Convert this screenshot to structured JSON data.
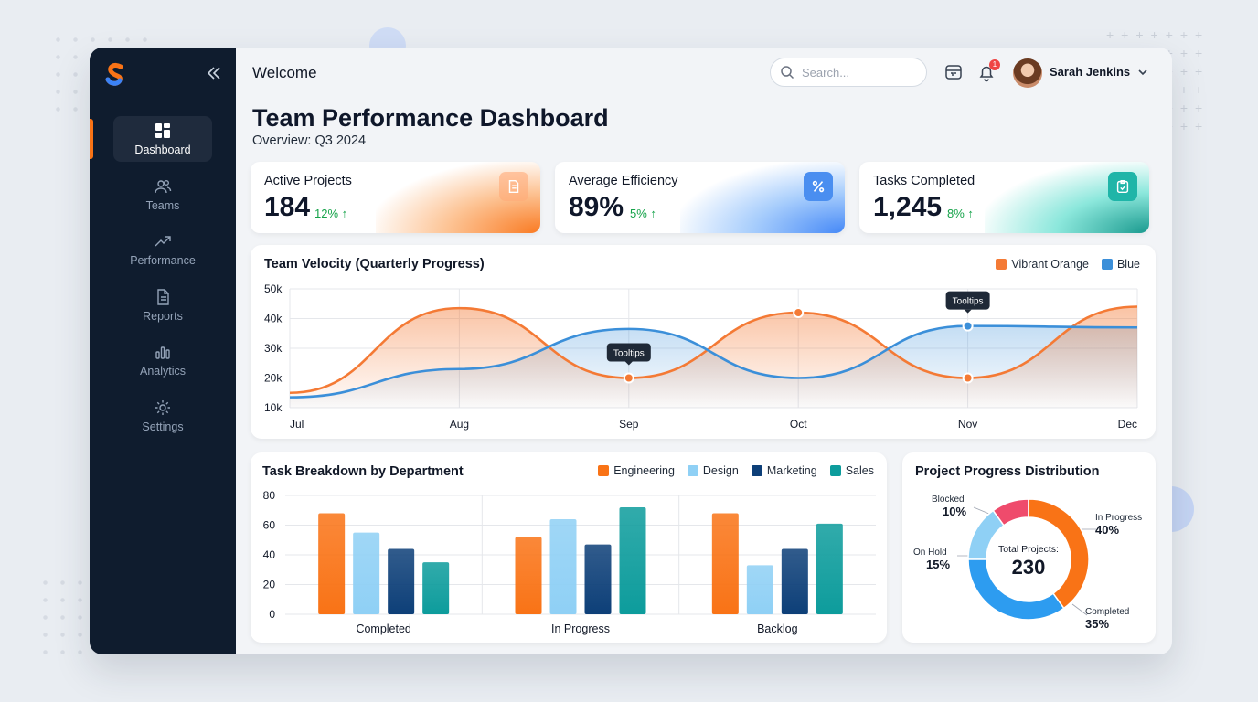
{
  "sidebar": {
    "items": [
      {
        "label": "Dashboard",
        "icon": "dashboard-icon",
        "active": true
      },
      {
        "label": "Teams",
        "icon": "users-icon"
      },
      {
        "label": "Performance",
        "icon": "trend-icon"
      },
      {
        "label": "Reports",
        "icon": "document-icon"
      },
      {
        "label": "Analytics",
        "icon": "bars-icon"
      },
      {
        "label": "Settings",
        "icon": "gear-icon"
      }
    ]
  },
  "header": {
    "welcome": "Welcome",
    "search_placeholder": "Search...",
    "notifications": "1",
    "user_name": "Sarah Jenkins"
  },
  "page": {
    "title": "Team Performance Dashboard",
    "subtitle": "Overview: Q3 2024"
  },
  "kpis": [
    {
      "label": "Active Projects",
      "value": "184",
      "delta": "12% ↑",
      "accent": "#f97316",
      "icon": "document-icon"
    },
    {
      "label": "Average Efficiency",
      "value": "89%",
      "delta": "5% ↑",
      "accent": "#3b82f6",
      "icon": "percent-icon"
    },
    {
      "label": "Tasks Completed",
      "value": "1,245",
      "delta": "8% ↑",
      "accent": "#14b8a6",
      "icon": "clipboard-icon"
    }
  ],
  "velocity": {
    "title": "Team Velocity (Quarterly Progress)",
    "legend": [
      "Vibrant Orange",
      "Blue"
    ],
    "tooltip1": "Tooltips",
    "tooltip2": "Tooltips"
  },
  "tasks": {
    "title": "Task Breakdown by Department",
    "legend": [
      "Engineering",
      "Design",
      "Marketing",
      "Sales"
    ]
  },
  "progress": {
    "title": "Project Progress Distribution",
    "center_label": "Total Projects:",
    "center_value": "230",
    "slices": [
      {
        "label": "Blocked",
        "value": "10%"
      },
      {
        "label": "In Progress",
        "value": "40%"
      },
      {
        "label": "On Hold",
        "value": "15%"
      },
      {
        "label": "Completed",
        "value": "35%"
      }
    ]
  },
  "chart_data": [
    {
      "type": "line",
      "title": "Team Velocity (Quarterly Progress)",
      "x": [
        "Jul",
        "Aug",
        "Sep",
        "Oct",
        "Nov",
        "Dec"
      ],
      "yticks": [
        "50k",
        "40k",
        "30k",
        "20k",
        "10k"
      ],
      "ylim": [
        10000,
        50000
      ],
      "series": [
        {
          "name": "Vibrant Orange",
          "color": "#f47a35",
          "values": [
            15000,
            43500,
            20000,
            42000,
            20000,
            44000
          ]
        },
        {
          "name": "Blue",
          "color": "#3b8fd9",
          "values": [
            13500,
            23000,
            36500,
            20000,
            37500,
            37000
          ]
        }
      ]
    },
    {
      "type": "bar",
      "title": "Task Breakdown by Department",
      "categories": [
        "Completed",
        "In Progress",
        "Backlog"
      ],
      "yticks": [
        "80",
        "60",
        "40",
        "20",
        "0"
      ],
      "ylim": [
        0,
        80
      ],
      "series": [
        {
          "name": "Engineering",
          "color": "#f97316",
          "values": [
            68,
            52,
            68
          ]
        },
        {
          "name": "Design",
          "color": "#8fd0f5",
          "values": [
            55,
            64,
            33
          ]
        },
        {
          "name": "Marketing",
          "color": "#0d3f78",
          "values": [
            44,
            47,
            44
          ]
        },
        {
          "name": "Sales",
          "color": "#0d9c9c",
          "values": [
            35,
            72,
            61
          ]
        }
      ]
    },
    {
      "type": "pie",
      "title": "Project Progress Distribution",
      "labels": [
        "In Progress",
        "Completed",
        "On Hold",
        "Blocked"
      ],
      "values": [
        40,
        35,
        15,
        10
      ],
      "colors": [
        "#f97316",
        "#2d9cf0",
        "#8fd0f5",
        "#123a6b"
      ],
      "total": 230
    }
  ]
}
